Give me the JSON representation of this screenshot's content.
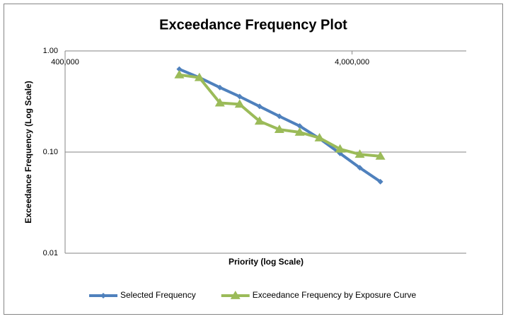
{
  "chart_data": {
    "type": "line",
    "title": "Exceedance Frequency Plot",
    "x_label": "Priority (log Scale)",
    "y_label": "Exceedance Frequency (Log Scale)",
    "x": [
      1000000,
      1175000,
      1385000,
      1623000,
      1904000,
      2232000,
      2628000,
      3080000,
      3632000,
      4256000,
      5020000
    ],
    "series": [
      {
        "name": "Selected Frequency",
        "color": "#4f81bd",
        "marker": "diamond",
        "values": [
          0.66,
          0.545,
          0.435,
          0.354,
          0.283,
          0.226,
          0.181,
          0.136,
          0.097,
          0.07,
          0.051
        ]
      },
      {
        "name": "Exceedance Frequency by Exposure Curve",
        "color": "#9bbb59",
        "marker": "triangle",
        "values": [
          0.58,
          0.545,
          0.306,
          0.297,
          0.202,
          0.167,
          0.157,
          0.138,
          0.107,
          0.095,
          0.091
        ]
      }
    ],
    "xlim": [
      400000,
      10000000
    ],
    "xticks": [
      {
        "value": 400000,
        "label": "400,000"
      },
      {
        "value": 4000000,
        "label": "4,000,000"
      }
    ],
    "ylim": [
      0.01,
      1
    ],
    "yticks": [
      {
        "value": 0.01,
        "label": "0.01"
      },
      {
        "value": 0.1,
        "label": "0.10"
      },
      {
        "value": 1,
        "label": "1.00"
      }
    ],
    "x_log": true,
    "y_log": true,
    "grid": true,
    "legend": "bottom"
  }
}
